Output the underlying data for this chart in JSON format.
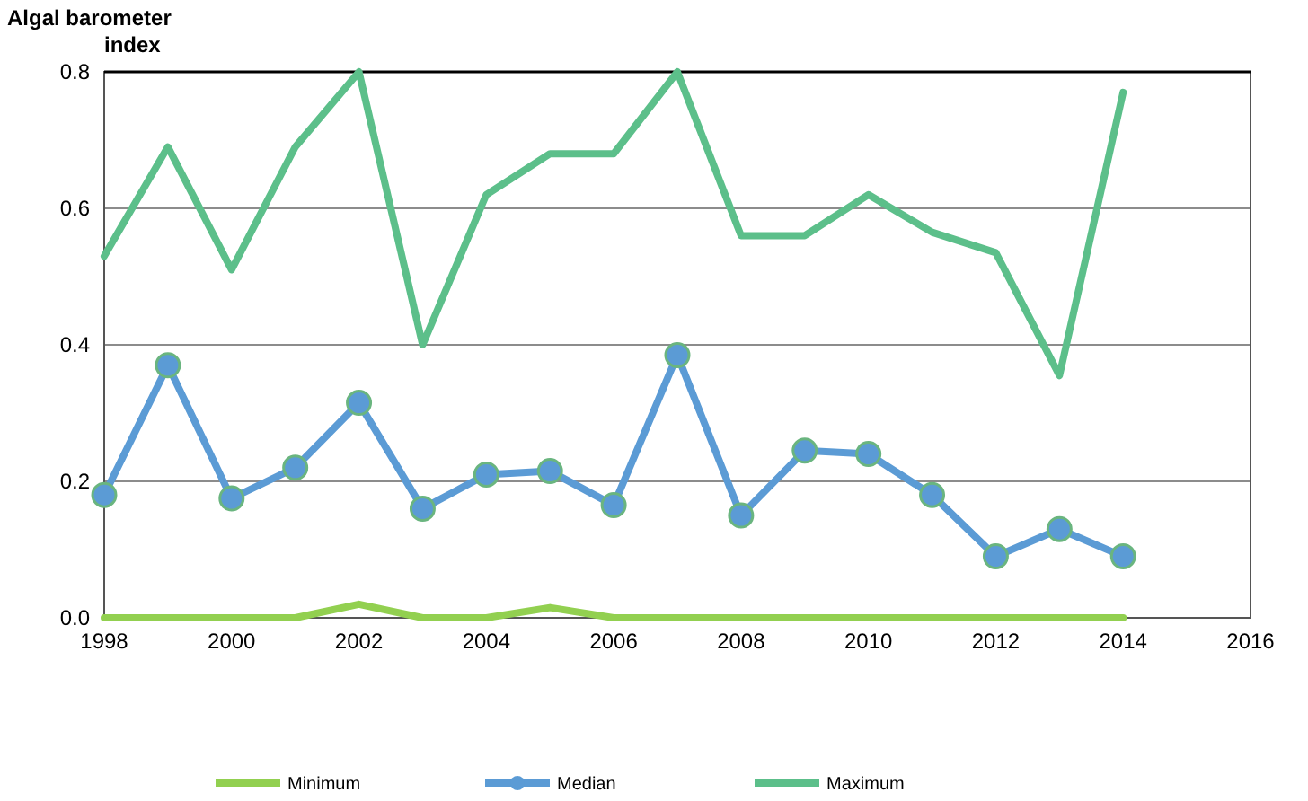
{
  "chart_data": {
    "type": "line",
    "ylabel": "Algal barometer index",
    "x": [
      1998,
      1999,
      2000,
      2001,
      2002,
      2003,
      2004,
      2005,
      2006,
      2007,
      2008,
      2009,
      2010,
      2011,
      2012,
      2013,
      2014
    ],
    "series": [
      {
        "name": "Minimum",
        "color": "#92d050",
        "marker": "none",
        "values": [
          0,
          0,
          0,
          0,
          0.02,
          0,
          0,
          0.015,
          0,
          0,
          0,
          0,
          0,
          0,
          0,
          0,
          0
        ]
      },
      {
        "name": "Median",
        "color": "#5b9bd5",
        "marker": "circle",
        "values": [
          0.18,
          0.37,
          0.175,
          0.22,
          0.315,
          0.16,
          0.21,
          0.215,
          0.165,
          0.385,
          0.15,
          0.245,
          0.24,
          0.18,
          0.09,
          0.13,
          0.09
        ]
      },
      {
        "name": "Maximum",
        "color": "#5cbf8a",
        "marker": "none",
        "values": [
          0.53,
          0.69,
          0.51,
          0.69,
          0.8,
          0.4,
          0.62,
          0.68,
          0.68,
          0.8,
          0.56,
          0.56,
          0.62,
          0.565,
          0.535,
          0.355,
          0.77
        ]
      }
    ],
    "xlim": [
      1998,
      2016
    ],
    "xticks": [
      1998,
      2000,
      2002,
      2004,
      2006,
      2008,
      2010,
      2012,
      2014,
      2016
    ],
    "ylim": [
      0,
      0.8
    ],
    "yticks": [
      {
        "value": 0,
        "label": "0.0"
      },
      {
        "value": 0.2,
        "label": "0.2"
      },
      {
        "value": 0.4,
        "label": "0.4"
      },
      {
        "value": 0.6,
        "label": "0.6"
      },
      {
        "value": 0.8,
        "label": "0.8"
      }
    ],
    "grid": "y",
    "legend": "bottom"
  }
}
